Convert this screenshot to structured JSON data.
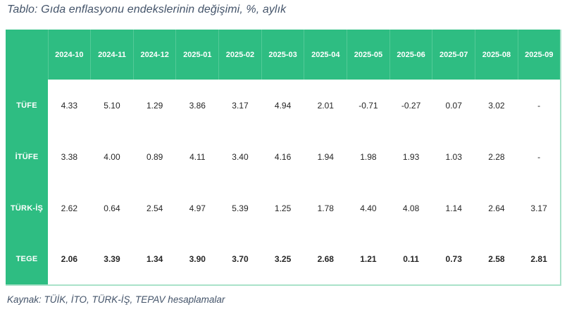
{
  "title": "Tablo: Gıda enflasyonu endekslerinin değişimi, %, aylık",
  "source": "Kaynak: TÜİK, İTO, TÜRK-İŞ, TEPAV hesaplamalar",
  "table": {
    "columns": [
      "2024-10",
      "2024-11",
      "2024-12",
      "2025-01",
      "2025-02",
      "2025-03",
      "2025-04",
      "2025-05",
      "2025-06",
      "2025-07",
      "2025-08",
      "2025-09"
    ],
    "rows": [
      {
        "label": "TÜFE",
        "bold": false,
        "values": [
          "4.33",
          "5.10",
          "1.29",
          "3.86",
          "3.17",
          "4.94",
          "2.01",
          "-0.71",
          "-0.27",
          "0.07",
          "3.02",
          "-"
        ]
      },
      {
        "label": "İTÜFE",
        "bold": false,
        "values": [
          "3.38",
          "4.00",
          "0.89",
          "4.11",
          "3.40",
          "4.16",
          "1.94",
          "1.98",
          "1.93",
          "1.03",
          "2.28",
          "-"
        ]
      },
      {
        "label": "TÜRK-İŞ",
        "bold": false,
        "values": [
          "2.62",
          "0.64",
          "2.54",
          "4.97",
          "5.39",
          "1.25",
          "1.78",
          "4.40",
          "4.08",
          "1.14",
          "2.64",
          "3.17"
        ]
      },
      {
        "label": "TEGE",
        "bold": true,
        "values": [
          "2.06",
          "3.39",
          "1.34",
          "3.90",
          "3.70",
          "3.25",
          "2.68",
          "1.21",
          "0.11",
          "0.73",
          "2.58",
          "2.81"
        ]
      }
    ]
  },
  "colors": {
    "header_green": "#2ebd82",
    "header_separator": "#53ca97",
    "table_edge": "#a9e2c9",
    "caption_text": "#44546a",
    "cell_text": "#262626"
  }
}
